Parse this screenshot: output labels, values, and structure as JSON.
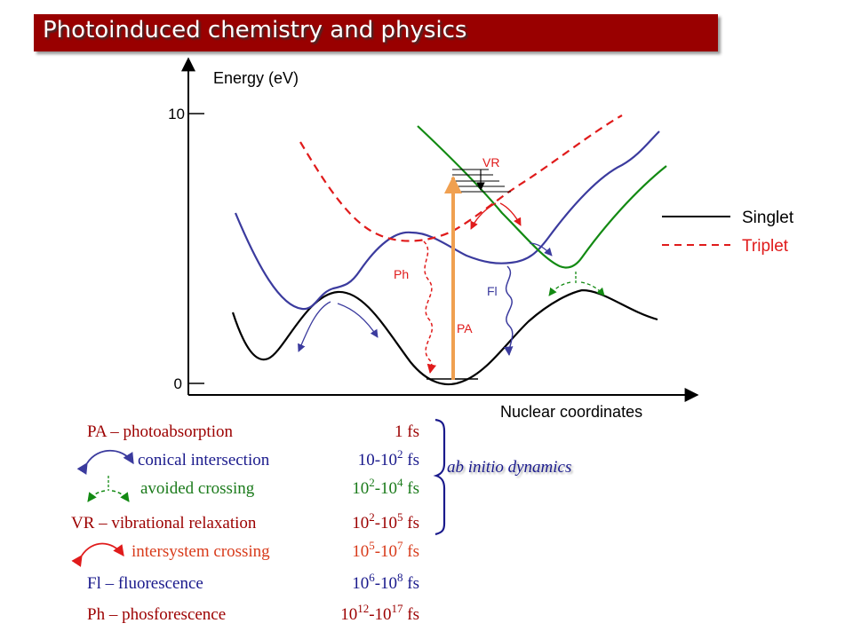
{
  "slide": {
    "title": "Photoinduced chemistry and physics"
  },
  "axes": {
    "ylabel": "Energy (eV)",
    "xlabel": "Nuclear coordinates",
    "yticks": [
      "10",
      "0"
    ]
  },
  "legend": {
    "singlet": "Singlet",
    "triplet": "Triplet"
  },
  "plot_labels": {
    "vr": "VR",
    "ph": "Ph",
    "fl": "Fl",
    "pa": "PA"
  },
  "timescales": [
    {
      "label": "PA – photoabsorption",
      "base1": "1",
      "exp1": "",
      "dash": "",
      "base2": "",
      "exp2": "",
      "unit": " fs",
      "color": "#9c0000"
    },
    {
      "label": "conical intersection",
      "base1": "10-10",
      "exp1": "2",
      "dash": "",
      "base2": "",
      "exp2": "",
      "unit": " fs",
      "color": "#1a1a8c"
    },
    {
      "label": "avoided crossing",
      "base1": "10",
      "exp1": "2",
      "dash": "-",
      "base2": "10",
      "exp2": "4",
      "unit": " fs",
      "color": "#1a7a1a"
    },
    {
      "label": "VR – vibrational relaxation",
      "base1": "10",
      "exp1": "2",
      "dash": "-",
      "base2": "10",
      "exp2": "5",
      "unit": " fs",
      "color": "#9c0000"
    },
    {
      "label": "intersystem crossing",
      "base1": "10",
      "exp1": "5",
      "dash": "-",
      "base2": "10",
      "exp2": "7",
      "unit": " fs",
      "color": "#d83a1a"
    },
    {
      "label": "Fl  – fluorescence",
      "base1": "10",
      "exp1": "6",
      "dash": "-",
      "base2": "10",
      "exp2": "8",
      "unit": " fs",
      "color": "#1a1a8c"
    },
    {
      "label": "Ph – phosforescence",
      "base1": "10",
      "exp1": "12",
      "dash": "-",
      "base2": "10",
      "exp2": "17",
      "unit": " fs",
      "color": "#9c0000"
    }
  ],
  "brace_label": "ab initio dynamics",
  "colors": {
    "title_bg": "#990000",
    "ground_state": "#000000",
    "singlet_1": "#3b3b9e",
    "singlet_2": "#138a13",
    "triplet": "#e01b1b",
    "photoabsorption": "#f0a050",
    "text_dark_red": "#9c0000",
    "text_navy": "#1a1a8c"
  },
  "icons": {
    "conical_intersection": "curved-double-arrow-icon",
    "avoided_crossing": "split-arrow-icon",
    "intersystem_crossing": "curved-double-arrow-icon"
  }
}
